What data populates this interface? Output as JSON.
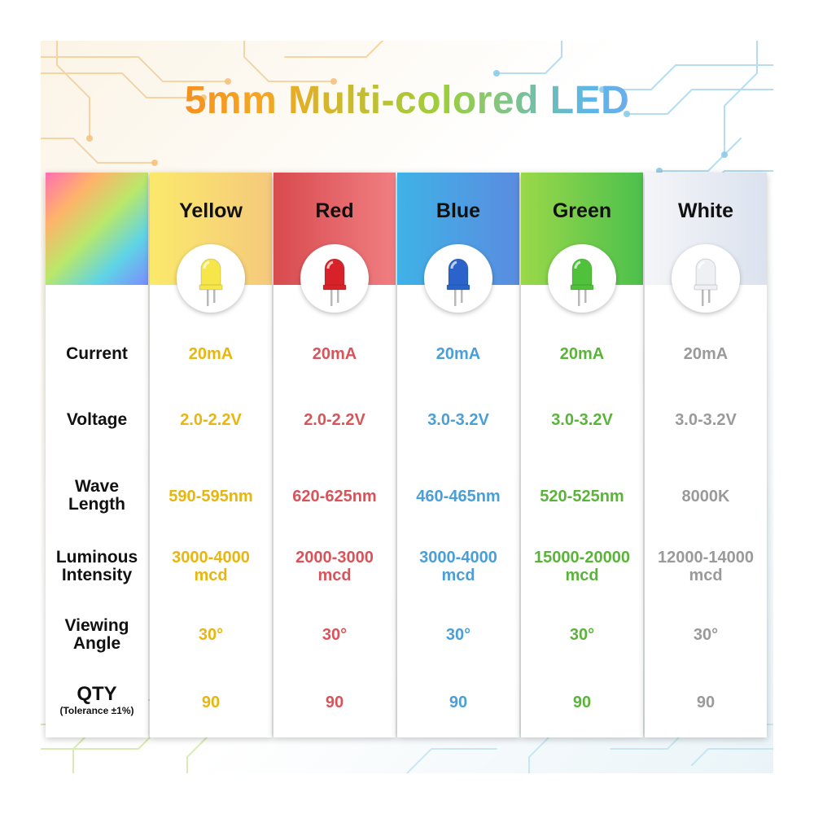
{
  "title": "5mm Multi-colored LED",
  "row_labels": {
    "current": "Current",
    "voltage": "Voltage",
    "wave_length_1": "Wave",
    "wave_length_2": "Length",
    "luminous_1": "Luminous",
    "luminous_2": "Intensity",
    "viewing_1": "Viewing",
    "viewing_2": "Angle",
    "qty": "QTY",
    "tolerance": "(Tolerance ±1%)"
  },
  "leds": [
    {
      "name": "Yellow",
      "text_color": "#e8b60f",
      "head_from": "#fbe96b",
      "head_to": "#f5c97c",
      "lens": "#f6e64a",
      "current": "20mA",
      "voltage": "2.0-2.2V",
      "wave": "590-595nm",
      "lum_1": "3000-4000",
      "lum_2": "mcd",
      "angle": "30°",
      "qty": "90"
    },
    {
      "name": "Red",
      "text_color": "#d9545a",
      "head_from": "#d84a4e",
      "head_to": "#f07f82",
      "lens": "#d8222a",
      "current": "20mA",
      "voltage": "2.0-2.2V",
      "wave": "620-625nm",
      "lum_1": "2000-3000",
      "lum_2": "mcd",
      "angle": "30°",
      "qty": "90"
    },
    {
      "name": "Blue",
      "text_color": "#4a9fd8",
      "head_from": "#3fb2e6",
      "head_to": "#5a8ce0",
      "lens": "#2a63c9",
      "current": "20mA",
      "voltage": "3.0-3.2V",
      "wave": "460-465nm",
      "lum_1": "3000-4000",
      "lum_2": "mcd",
      "angle": "30°",
      "qty": "90"
    },
    {
      "name": "Green",
      "text_color": "#5bb43a",
      "head_from": "#9ad84a",
      "head_to": "#4cc04c",
      "lens": "#4fc13a",
      "current": "20mA",
      "voltage": "3.0-3.2V",
      "wave": "520-525nm",
      "lum_1": "15000-20000",
      "lum_2": "mcd",
      "angle": "30°",
      "qty": "90"
    },
    {
      "name": "White",
      "text_color": "#9a9a9a",
      "head_from": "#f4f5f8",
      "head_to": "#dbe2ee",
      "lens": "#eef0f3",
      "current": "20mA",
      "voltage": "3.0-3.2V",
      "wave": "8000K",
      "lum_1": "12000-14000",
      "lum_2": "mcd",
      "angle": "30°",
      "qty": "90"
    }
  ]
}
